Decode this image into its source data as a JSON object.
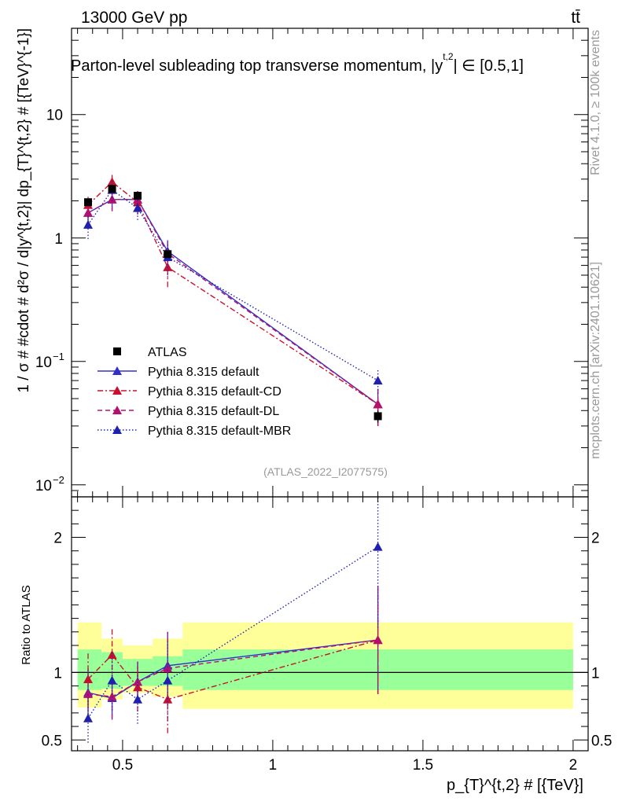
{
  "header": {
    "energy": "13000 GeV pp",
    "process": "tt̄",
    "title_main": "Parton-level subleading top transverse momentum, |y",
    "title_sup": "t,2",
    "title_tail": "| ∈ [0.5,1]",
    "ref": "(ATLAS_2022_I2077575)",
    "side_rivet": "Rivet 4.1.0, ≥ 100k events",
    "side_mcplots": "mcplots.cern.ch [arXiv:2401.10621]"
  },
  "chart_data": [
    {
      "type": "scatter",
      "scale": "log",
      "ylabel": "1 / σ # #cdot # d²σ / d|y^{t,2}| dp_{T}^{t,2} # [{TeV}^{-1}]",
      "xlabel": "p_{T}^{t,2} # [{TeV}]",
      "xlim": [
        0.33,
        2.05
      ],
      "ylim": [
        0.008,
        50
      ],
      "y_ticks": [
        {
          "v": 0.01,
          "label": "10",
          "sup": "−2"
        },
        {
          "v": 0.1,
          "label": "10",
          "sup": "−1"
        },
        {
          "v": 1,
          "label": "1",
          "sup": ""
        },
        {
          "v": 10,
          "label": "10",
          "sup": ""
        }
      ],
      "series": [
        {
          "name": "ATLAS",
          "color": "#000000",
          "style": "data",
          "x": [
            0.385,
            0.465,
            0.55,
            0.65,
            1.35
          ],
          "y": [
            1.95,
            2.5,
            2.2,
            0.74,
            0.036
          ],
          "yerr": [
            0.12,
            0.12,
            0.12,
            0.05,
            0.004
          ]
        },
        {
          "name": "Pythia 8.315 default",
          "color": "#3030c8",
          "style": "solid",
          "x": [
            0.385,
            0.465,
            0.55,
            0.65,
            1.35
          ],
          "y": [
            1.6,
            2.05,
            2.05,
            0.78,
            0.045
          ],
          "yerr": [
            0.35,
            0.4,
            0.35,
            0.18,
            0.015
          ]
        },
        {
          "name": "Pythia 8.315 default-CD",
          "color": "#c8102e",
          "style": "dashdot",
          "x": [
            0.385,
            0.465,
            0.55,
            0.65,
            1.35
          ],
          "y": [
            1.85,
            2.85,
            1.95,
            0.58,
            0.045
          ],
          "yerr": [
            0.4,
            0.5,
            0.4,
            0.18,
            0.015
          ]
        },
        {
          "name": "Pythia 8.315 default-DL",
          "color": "#b5106e",
          "style": "dashed",
          "x": [
            0.385,
            0.465,
            0.55,
            0.65,
            1.35
          ],
          "y": [
            1.6,
            2.05,
            2.05,
            0.75,
            0.045
          ],
          "yerr": [
            0.35,
            0.4,
            0.35,
            0.2,
            0.015
          ]
        },
        {
          "name": "Pythia 8.315 default-MBR",
          "color": "#2020b0",
          "style": "dotted",
          "x": [
            0.385,
            0.465,
            0.55,
            0.65,
            1.35
          ],
          "y": [
            1.28,
            2.45,
            1.75,
            0.7,
            0.07
          ],
          "yerr": [
            0.3,
            0.45,
            0.35,
            0.22,
            0.015
          ]
        }
      ]
    },
    {
      "type": "scatter",
      "scale": "linear",
      "ylabel": "Ratio to ATLAS",
      "xlim": [
        0.33,
        2.05
      ],
      "ylim": [
        0.42,
        2.3
      ],
      "x_ticks": [
        {
          "v": 0.5,
          "label": "0.5"
        },
        {
          "v": 1,
          "label": "1"
        },
        {
          "v": 1.5,
          "label": "1.5"
        },
        {
          "v": 2,
          "label": "2"
        }
      ],
      "y_ticks": [
        {
          "v": 0.5,
          "label": "0.5"
        },
        {
          "v": 1,
          "label": "1"
        },
        {
          "v": 2,
          "label": "2"
        }
      ],
      "bands": [
        {
          "x0": 0.35,
          "x1": 0.43,
          "inner": [
            0.87,
            1.17
          ],
          "outer": [
            0.74,
            1.37
          ]
        },
        {
          "x0": 0.43,
          "x1": 0.5,
          "inner": [
            0.88,
            1.15
          ],
          "outer": [
            0.8,
            1.25
          ]
        },
        {
          "x0": 0.5,
          "x1": 0.6,
          "inner": [
            0.9,
            1.1
          ],
          "outer": [
            0.85,
            1.2
          ]
        },
        {
          "x0": 0.6,
          "x1": 0.7,
          "inner": [
            0.9,
            1.12
          ],
          "outer": [
            0.82,
            1.25
          ]
        },
        {
          "x0": 0.7,
          "x1": 2.0,
          "inner": [
            0.87,
            1.17
          ],
          "outer": [
            0.73,
            1.37
          ]
        }
      ],
      "series": [
        {
          "name": "Pythia 8.315 default",
          "color": "#3030c8",
          "style": "solid",
          "x": [
            0.385,
            0.465,
            0.55,
            0.65,
            1.35
          ],
          "y": [
            0.85,
            0.81,
            0.93,
            1.05,
            1.24
          ],
          "yerr": [
            0.18,
            0.16,
            0.15,
            0.25,
            0.4
          ]
        },
        {
          "name": "Pythia 8.315 default-CD",
          "color": "#c8102e",
          "style": "dashdot",
          "x": [
            0.385,
            0.465,
            0.55,
            0.65,
            1.35
          ],
          "y": [
            0.95,
            1.13,
            0.89,
            0.8,
            1.24
          ],
          "yerr": [
            0.2,
            0.2,
            0.18,
            0.25,
            0.4
          ]
        },
        {
          "name": "Pythia 8.315 default-DL",
          "color": "#b5106e",
          "style": "dashed",
          "x": [
            0.385,
            0.465,
            0.55,
            0.65,
            1.35
          ],
          "y": [
            0.84,
            0.82,
            0.93,
            1.03,
            1.24
          ],
          "yerr": [
            0.18,
            0.16,
            0.15,
            0.27,
            0.4
          ]
        },
        {
          "name": "Pythia 8.315 default-MBR",
          "color": "#2020b0",
          "style": "dotted",
          "x": [
            0.385,
            0.465,
            0.55,
            0.65,
            1.35
          ],
          "y": [
            0.66,
            0.94,
            0.8,
            0.94,
            1.93
          ],
          "yerr": [
            0.18,
            0.22,
            0.18,
            0.3,
            0.6
          ]
        }
      ]
    }
  ]
}
